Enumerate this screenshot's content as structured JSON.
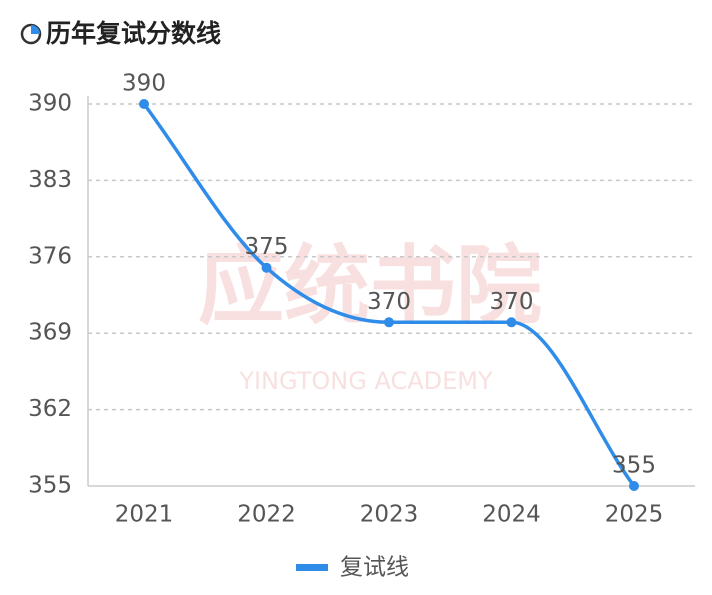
{
  "chart_data": {
    "type": "line",
    "title": "历年复试分数线",
    "watermark": [
      "应统书院",
      "YINGTONG ACADEMY"
    ],
    "categories": [
      "2021",
      "2022",
      "2023",
      "2024",
      "2025"
    ],
    "series": [
      {
        "name": "复试线",
        "color": "#2f8ce8",
        "values": [
          390,
          375,
          370,
          370,
          355
        ]
      }
    ],
    "ylim": [
      355,
      390
    ],
    "yticks": [
      355,
      362,
      369,
      376,
      383,
      390
    ],
    "grid": true,
    "smooth": true
  }
}
